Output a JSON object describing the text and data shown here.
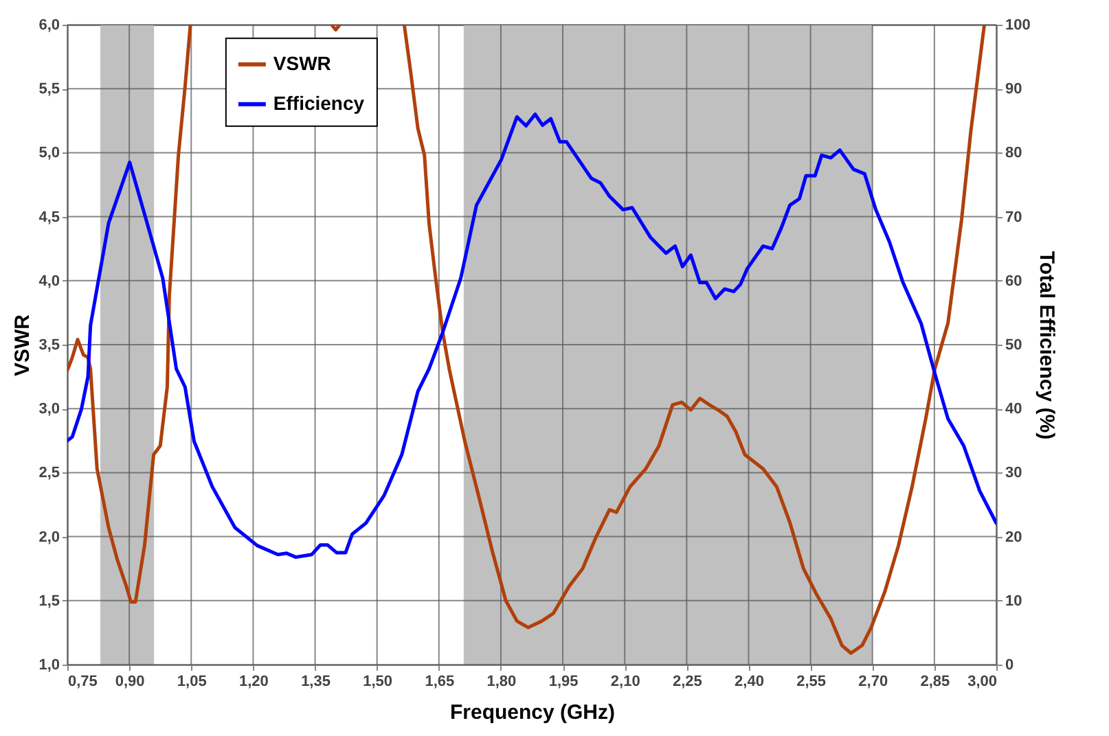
{
  "chart_data": {
    "type": "line",
    "xlabel": "Frequency (GHz)",
    "ylabel": "VSWR",
    "y2label": "Total Efficiency (%)",
    "xlim": [
      0.75,
      3.0
    ],
    "xticks": [
      {
        "value": 0.75,
        "label": "0,75"
      },
      {
        "value": 0.9,
        "label": "0,90"
      },
      {
        "value": 1.05,
        "label": "1,05"
      },
      {
        "value": 1.2,
        "label": "1,20"
      },
      {
        "value": 1.35,
        "label": "1,35"
      },
      {
        "value": 1.5,
        "label": "1,50"
      },
      {
        "value": 1.65,
        "label": "1,65"
      },
      {
        "value": 1.8,
        "label": "1,80"
      },
      {
        "value": 1.95,
        "label": "1,95"
      },
      {
        "value": 2.1,
        "label": "2,10"
      },
      {
        "value": 2.25,
        "label": "2,25"
      },
      {
        "value": 2.4,
        "label": "2,40"
      },
      {
        "value": 2.55,
        "label": "2,55"
      },
      {
        "value": 2.7,
        "label": "2,70"
      },
      {
        "value": 2.85,
        "label": "2,85"
      },
      {
        "value": 3.0,
        "label": "3,00"
      }
    ],
    "ylim": [
      1.0,
      6.0
    ],
    "yticks": [
      {
        "value": 1.0,
        "label": "1,0"
      },
      {
        "value": 1.5,
        "label": "1,5"
      },
      {
        "value": 2.0,
        "label": "2,0"
      },
      {
        "value": 2.5,
        "label": "2,5"
      },
      {
        "value": 3.0,
        "label": "3,0"
      },
      {
        "value": 3.5,
        "label": "3,5"
      },
      {
        "value": 4.0,
        "label": "4,0"
      },
      {
        "value": 4.5,
        "label": "4,5"
      },
      {
        "value": 5.0,
        "label": "5,0"
      },
      {
        "value": 5.5,
        "label": "5,5"
      },
      {
        "value": 6.0,
        "label": "6,0"
      }
    ],
    "y2lim": [
      0,
      100
    ],
    "y2ticks": [
      0,
      10,
      20,
      30,
      40,
      50,
      60,
      70,
      80,
      90,
      100
    ],
    "grid": true,
    "legend": "top left",
    "line_style": "solid",
    "bands": [
      {
        "axis": "x",
        "from": 0.83,
        "to": 0.96,
        "color": "#c0c0c0"
      },
      {
        "axis": "x",
        "from": 1.71,
        "to": 2.7,
        "color": "#c0c0c0"
      }
    ],
    "series": [
      {
        "name": "VSWR",
        "color": "#b0400c",
        "x": [
          0.75,
          0.762,
          0.775,
          0.789,
          0.8,
          0.806,
          0.822,
          0.85,
          0.871,
          0.893,
          0.904,
          0.915,
          0.937,
          0.959,
          0.975,
          0.992,
          0.997,
          1.019,
          1.035,
          1.048,
          1.2,
          1.39,
          1.4,
          1.41,
          1.5,
          1.566,
          1.582,
          1.599,
          1.615,
          1.626,
          1.642,
          1.659,
          1.675,
          1.713,
          1.746,
          1.779,
          1.812,
          1.839,
          1.866,
          1.899,
          1.927,
          1.965,
          1.998,
          2.031,
          2.063,
          2.08,
          2.113,
          2.151,
          2.183,
          2.216,
          2.238,
          2.26,
          2.282,
          2.305,
          2.326,
          2.348,
          2.369,
          2.391,
          2.435,
          2.468,
          2.5,
          2.533,
          2.566,
          2.599,
          2.626,
          2.648,
          2.675,
          2.697,
          2.73,
          2.763,
          2.796,
          2.829,
          2.851,
          2.883,
          2.916,
          2.938,
          2.971
        ],
        "values": [
          3.3,
          3.4,
          3.54,
          3.42,
          3.4,
          3.31,
          2.53,
          2.07,
          1.82,
          1.61,
          1.49,
          1.49,
          1.93,
          2.64,
          2.71,
          3.17,
          3.88,
          4.98,
          5.51,
          6.0,
          null,
          6.0,
          5.96,
          6.0,
          null,
          6.0,
          5.62,
          5.19,
          4.98,
          4.45,
          4.02,
          3.6,
          3.31,
          2.74,
          2.32,
          1.89,
          1.5,
          1.34,
          1.29,
          1.34,
          1.4,
          1.61,
          1.75,
          2.0,
          2.21,
          2.19,
          2.39,
          2.53,
          2.71,
          3.03,
          3.05,
          2.99,
          3.08,
          3.03,
          2.99,
          2.94,
          2.82,
          2.64,
          2.53,
          2.39,
          2.11,
          1.75,
          1.54,
          1.36,
          1.15,
          1.09,
          1.15,
          1.29,
          1.57,
          1.93,
          2.39,
          2.92,
          3.31,
          3.67,
          4.48,
          5.16,
          6.0
        ]
      },
      {
        "name": "Efficiency",
        "color": "#0000ff",
        "axis": "y2",
        "x": [
          0.75,
          0.762,
          0.784,
          0.8,
          0.806,
          0.85,
          0.901,
          0.937,
          0.981,
          1.014,
          1.035,
          1.057,
          1.101,
          1.156,
          1.21,
          1.26,
          1.281,
          1.303,
          1.342,
          1.363,
          1.38,
          1.402,
          1.424,
          1.44,
          1.473,
          1.517,
          1.56,
          1.599,
          1.626,
          1.659,
          1.703,
          1.741,
          1.801,
          1.839,
          1.861,
          1.883,
          1.901,
          1.921,
          1.943,
          1.959,
          2.019,
          2.041,
          2.063,
          2.096,
          2.118,
          2.162,
          2.2,
          2.222,
          2.24,
          2.26,
          2.282,
          2.298,
          2.32,
          2.342,
          2.364,
          2.38,
          2.397,
          2.435,
          2.457,
          2.479,
          2.5,
          2.523,
          2.539,
          2.561,
          2.577,
          2.599,
          2.621,
          2.654,
          2.681,
          2.708,
          2.741,
          2.774,
          2.818,
          2.851,
          2.883,
          2.921,
          2.96,
          3.0
        ],
        "values": [
          35,
          35.6,
          39.9,
          45,
          53,
          69,
          78.5,
          70.4,
          60.4,
          46.2,
          43.4,
          34.9,
          27.8,
          21.4,
          18.6,
          17.2,
          17.4,
          16.8,
          17.2,
          18.7,
          18.7,
          17.5,
          17.5,
          20.4,
          22.1,
          26.4,
          32.8,
          42.7,
          46.2,
          51.9,
          60.4,
          71.8,
          78.9,
          85.6,
          84.2,
          86,
          84.3,
          85.3,
          81.7,
          81.7,
          76,
          75.3,
          73.2,
          71.1,
          71.4,
          66.8,
          64.3,
          65.4,
          62.2,
          64,
          59.7,
          59.7,
          57.2,
          58.7,
          58.3,
          59.4,
          61.9,
          65.4,
          65,
          68.2,
          71.8,
          72.8,
          76.4,
          76.4,
          79.6,
          79.2,
          80.4,
          77.4,
          76.7,
          71.1,
          66.1,
          59.7,
          53.3,
          45.5,
          38.4,
          34.2,
          27.1,
          22.1
        ]
      }
    ]
  }
}
